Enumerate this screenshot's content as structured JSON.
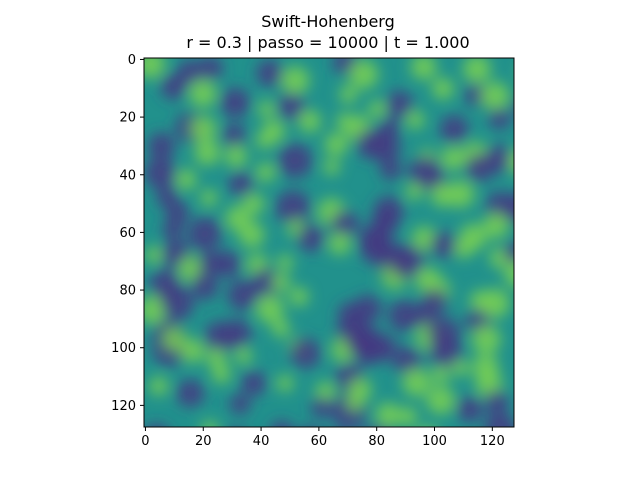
{
  "chart_data": {
    "type": "heatmap",
    "title": "Swift-Hohenberg",
    "subtitle": "r = 0.3 | passo = 10000 | t = 1.000",
    "xlabel": "",
    "ylabel": "",
    "grid": false,
    "colormap": "viridis",
    "field_size": [
      128,
      128
    ],
    "xlim": [
      -0.5,
      127.5
    ],
    "ylim": [
      127.5,
      -0.5
    ],
    "x_ticks": [
      0,
      20,
      40,
      60,
      80,
      100,
      120
    ],
    "x_tick_labels": [
      "0",
      "20",
      "40",
      "60",
      "80",
      "100",
      "120"
    ],
    "y_ticks": [
      0,
      20,
      40,
      60,
      80,
      100,
      120
    ],
    "y_tick_labels": [
      "0",
      "20",
      "40",
      "60",
      "80",
      "100",
      "120"
    ],
    "colors": {
      "dark": "#443a83",
      "mid": "#21918c",
      "bright": "#7ad151"
    }
  }
}
